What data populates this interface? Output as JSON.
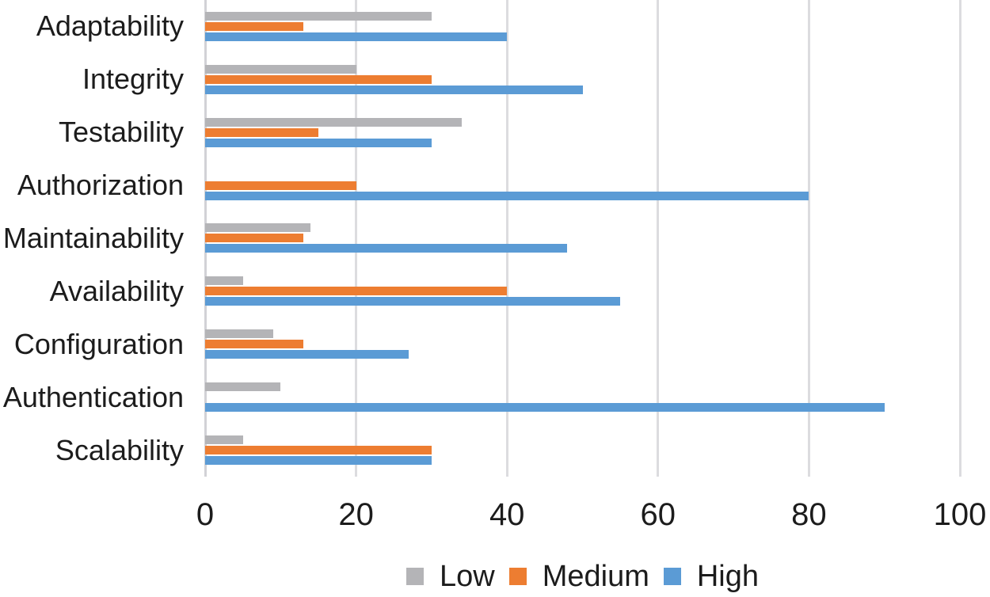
{
  "chart_data": {
    "type": "bar",
    "orientation": "horizontal",
    "title": "",
    "xlabel": "",
    "ylabel": "",
    "xlim": [
      0,
      100
    ],
    "x_ticks": [
      "0",
      "20",
      "40",
      "60",
      "80",
      "100"
    ],
    "grid": "vertical",
    "legend_position": "bottom",
    "categories": [
      "Adaptability",
      "Integrity",
      "Testability",
      "Authorization",
      "Maintainability",
      "Availability",
      "Configuration",
      "Authentication",
      "Scalability"
    ],
    "series": [
      {
        "name": "Low",
        "color": "#b4b4b7",
        "values": [
          30,
          20,
          34,
          0,
          14,
          5,
          9,
          10,
          5
        ]
      },
      {
        "name": "Medium",
        "color": "#ed7d31",
        "values": [
          13,
          30,
          15,
          20,
          13,
          40,
          13,
          0,
          30
        ]
      },
      {
        "name": "High",
        "color": "#5b9bd5",
        "values": [
          40,
          50,
          30,
          80,
          48,
          55,
          27,
          90,
          30
        ]
      }
    ]
  },
  "colors": {
    "gridline": "#dcdcdf",
    "axis_zero_line": "#d2d2d6",
    "text": "#1c1c1c",
    "background": "#ffffff"
  }
}
